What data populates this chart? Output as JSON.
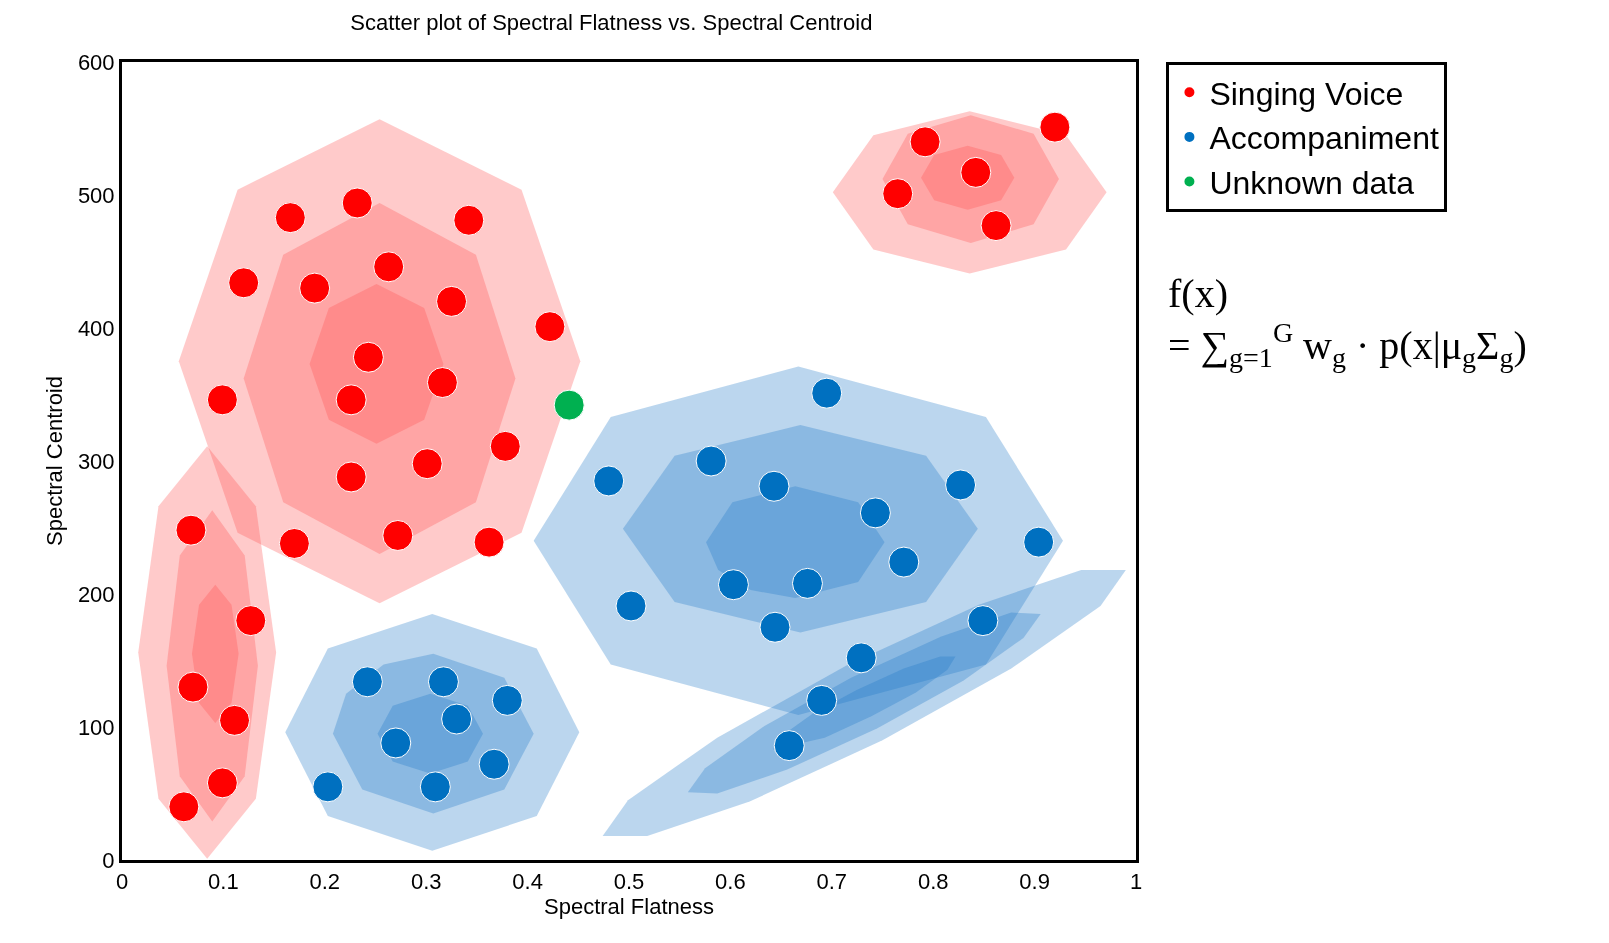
{
  "chart_data": {
    "type": "scatter",
    "title": "Scatter plot of Spectral Flatness vs. Spectral Centroid",
    "xlabel": "Spectral Flatness",
    "ylabel": "Spectral Centroid",
    "xlim": [
      0,
      1
    ],
    "xticks": [
      0,
      0.1,
      0.2,
      0.3,
      0.4,
      0.5,
      0.6,
      0.7,
      0.8,
      0.9,
      1
    ],
    "ylim": [
      0,
      600
    ],
    "yticks": [
      0,
      100,
      200,
      300,
      400,
      500,
      600
    ],
    "legend": "top right",
    "marker": "circle",
    "annotations": [
      "f(x)\n= ∑$_{g=1}$$^{G}$ w$_{g}$ · p(x|μ$_{g}$Σ$_{g}$)"
    ],
    "series": [
      {
        "type": "area",
        "marker": "none",
        "color": "#ff5050",
        "x": [
          0.452,
          0.394,
          0.254,
          0.114,
          0.056,
          0.114,
          0.254,
          0.394,
          0.452
        ],
        "values": [
          375,
          504,
          557,
          504,
          375,
          246,
          193,
          246,
          375
        ]
      },
      {
        "type": "area",
        "marker": "none",
        "color": "#ff5050",
        "x": [
          0.388,
          0.349,
          0.254,
          0.159,
          0.12,
          0.159,
          0.254,
          0.349,
          0.388
        ],
        "values": [
          362,
          455,
          494,
          455,
          362,
          269,
          230,
          269,
          362
        ]
      },
      {
        "type": "area",
        "marker": "none",
        "color": "#ff5050",
        "x": [
          0.317,
          0.298,
          0.251,
          0.204,
          0.185,
          0.204,
          0.251,
          0.298,
          0.317
        ],
        "values": [
          373,
          415,
          433,
          415,
          373,
          331,
          313,
          331,
          373
        ]
      },
      {
        "type": "area",
        "marker": "none",
        "color": "#ff5050",
        "x": [
          0.152,
          0.132,
          0.084,
          0.036,
          0.016,
          0.036,
          0.084,
          0.132,
          0.152
        ],
        "values": [
          156,
          266,
          311,
          266,
          156,
          46,
          1,
          46,
          156
        ]
      },
      {
        "type": "area",
        "marker": "none",
        "color": "#ff5050",
        "x": [
          0.134,
          0.121,
          0.089,
          0.057,
          0.044,
          0.057,
          0.089,
          0.121,
          0.134
        ],
        "values": [
          146,
          229,
          263,
          229,
          146,
          63,
          29,
          63,
          146
        ]
      },
      {
        "type": "area",
        "marker": "none",
        "color": "#ff5050",
        "x": [
          0.115,
          0.108,
          0.092,
          0.076,
          0.069,
          0.076,
          0.092,
          0.108,
          0.115
        ],
        "values": [
          155,
          192,
          207,
          192,
          155,
          118,
          103,
          118,
          155
        ]
      },
      {
        "type": "area",
        "marker": "none",
        "color": "#ff5050",
        "x": [
          0.971,
          0.931,
          0.836,
          0.741,
          0.701,
          0.741,
          0.836,
          0.931,
          0.971
        ],
        "values": [
          502,
          545,
          563,
          545,
          502,
          459,
          441,
          459,
          502
        ]
      },
      {
        "type": "area",
        "marker": "none",
        "color": "#ff5050",
        "x": [
          0.924,
          0.899,
          0.837,
          0.775,
          0.75,
          0.775,
          0.837,
          0.899,
          0.924
        ],
        "values": [
          512,
          546,
          560,
          546,
          512,
          478,
          464,
          478,
          512
        ]
      },
      {
        "type": "area",
        "marker": "none",
        "color": "#ff5050",
        "x": [
          0.88,
          0.867,
          0.834,
          0.801,
          0.788,
          0.801,
          0.834,
          0.867,
          0.88
        ],
        "values": [
          513,
          530,
          537,
          530,
          513,
          496,
          489,
          496,
          513
        ]
      },
      {
        "type": "area",
        "marker": "none",
        "color": "#1e78c8",
        "x": [
          0.451,
          0.409,
          0.306,
          0.203,
          0.161,
          0.203,
          0.306,
          0.409,
          0.451
        ],
        "values": [
          96,
          159,
          185,
          159,
          96,
          33,
          7,
          33,
          96
        ]
      },
      {
        "type": "area",
        "marker": "none",
        "color": "#1e78c8",
        "x": [
          0.406,
          0.377,
          0.307,
          0.258,
          0.221,
          0.208,
          0.237,
          0.307,
          0.377,
          0.406
        ],
        "values": [
          95,
          137,
          155,
          147,
          125,
          95,
          53,
          35,
          53,
          95
        ]
      },
      {
        "type": "area",
        "marker": "none",
        "color": "#1e78c8",
        "x": [
          0.356,
          0.341,
          0.304,
          0.267,
          0.252,
          0.267,
          0.304,
          0.341,
          0.356
        ],
        "values": [
          95,
          116,
          125,
          116,
          95,
          74,
          65,
          74,
          95
        ]
      },
      {
        "type": "area",
        "marker": "none",
        "color": "#1e78c8",
        "x": [
          0.928,
          0.852,
          0.667,
          0.482,
          0.406,
          0.482,
          0.667,
          0.852,
          0.928
        ],
        "values": [
          240,
          333,
          371,
          333,
          240,
          147,
          109,
          147,
          240
        ]
      },
      {
        "type": "area",
        "marker": "none",
        "color": "#1e78c8",
        "x": [
          0.844,
          0.793,
          0.669,
          0.545,
          0.494,
          0.545,
          0.669,
          0.793,
          0.844
        ],
        "values": [
          249,
          304,
          327,
          304,
          249,
          194,
          171,
          194,
          249
        ]
      },
      {
        "type": "area",
        "marker": "none",
        "color": "#1e78c8",
        "x": [
          0.752,
          0.726,
          0.664,
          0.602,
          0.576,
          0.588,
          0.62,
          0.664,
          0.726,
          0.752
        ],
        "values": [
          239,
          269,
          281,
          269,
          239,
          218,
          203,
          197,
          209,
          239
        ]
      },
      {
        "type": "area",
        "marker": "none",
        "color": "#1e78c8",
        "x": [
          0.99,
          0.965,
          0.877,
          0.75,
          0.619,
          0.518,
          0.474,
          0.499,
          0.587,
          0.714,
          0.845,
          0.946,
          0.99
        ],
        "values": [
          218,
          191,
          144,
          90,
          44,
          18,
          18,
          45,
          92,
          146,
          192,
          218,
          218
        ]
      },
      {
        "type": "area",
        "marker": "none",
        "color": "#1e78c8",
        "x": [
          0.906,
          0.889,
          0.83,
          0.745,
          0.656,
          0.587,
          0.558,
          0.575,
          0.634,
          0.719,
          0.808,
          0.877,
          0.906
        ],
        "values": [
          185,
          167,
          135,
          99,
          68,
          50,
          51,
          69,
          101,
          137,
          168,
          186,
          185
        ]
      },
      {
        "type": "area",
        "marker": "none",
        "color": "#1e78c8",
        "x": [
          0.822,
          0.814,
          0.783,
          0.739,
          0.693,
          0.642,
          0.65,
          0.681,
          0.725,
          0.771,
          0.807,
          0.822
        ],
        "values": [
          153,
          143,
          126,
          108,
          92,
          83,
          93,
          110,
          128,
          144,
          153,
          153
        ]
      },
      {
        "name": "Singing Voice",
        "color": "#ff0000",
        "x": [
          0.166,
          0.232,
          0.342,
          0.12,
          0.19,
          0.263,
          0.325,
          0.422,
          0.243,
          0.099,
          0.226,
          0.316,
          0.378,
          0.226,
          0.301,
          0.17,
          0.272,
          0.362,
          0.068,
          0.127,
          0.07,
          0.111,
          0.099,
          0.061,
          0.792,
          0.92,
          0.765,
          0.842,
          0.862
        ],
        "values": [
          483,
          494,
          481,
          434,
          430,
          446,
          420,
          401,
          378,
          346,
          346,
          359,
          311,
          288,
          298,
          238,
          244,
          239,
          248,
          180,
          130,
          105,
          58,
          40,
          540,
          551,
          501,
          517,
          477
        ]
      },
      {
        "name": "Accompaniment",
        "color": "#0070c0",
        "x": [
          0.695,
          0.581,
          0.48,
          0.643,
          0.827,
          0.743,
          0.904,
          0.771,
          0.603,
          0.676,
          0.502,
          0.644,
          0.849,
          0.729,
          0.69,
          0.658,
          0.242,
          0.317,
          0.38,
          0.33,
          0.27,
          0.367,
          0.203,
          0.309
        ],
        "values": [
          351,
          300,
          285,
          281,
          282,
          261,
          239,
          224,
          207,
          208,
          191,
          175,
          180,
          152,
          120,
          86,
          134,
          134,
          120,
          106,
          88,
          72,
          55,
          55
        ]
      },
      {
        "name": "Unknown data",
        "color": "#00b050",
        "x": [
          0.441
        ],
        "values": [
          342
        ]
      }
    ]
  }
}
